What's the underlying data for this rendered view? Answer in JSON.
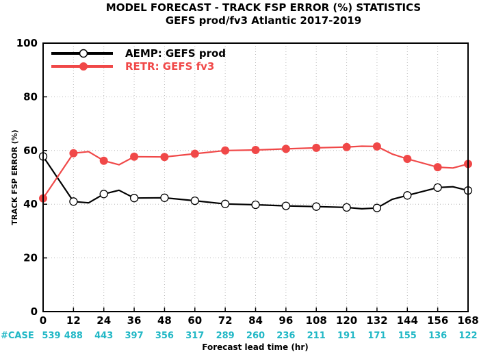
{
  "chart_data": {
    "type": "line",
    "title": "MODEL FORECAST - TRACK FSP ERROR (%) STATISTICS",
    "subtitle": "GEFS prod/fv3 Atlantic 2017-2019",
    "xlabel": "Forecast lead time (hr)",
    "ylabel": "TRACK FSP ERROR (%)",
    "xlim": [
      0,
      168
    ],
    "ylim": [
      0,
      100
    ],
    "x_ticks": [
      0,
      12,
      24,
      36,
      48,
      60,
      72,
      84,
      96,
      108,
      120,
      132,
      144,
      156,
      168
    ],
    "y_ticks": [
      0,
      20,
      40,
      60,
      80,
      100
    ],
    "grid": true,
    "legend_position": "top-left",
    "x": [
      0,
      12,
      18,
      24,
      30,
      36,
      48,
      60,
      72,
      84,
      96,
      108,
      120,
      126,
      132,
      138,
      144,
      156,
      162,
      168
    ],
    "series": [
      {
        "name": "AEMP: GEFS prod",
        "color": "#000000",
        "marker": "open-circle",
        "values": [
          57.8,
          41.0,
          40.5,
          43.8,
          45.2,
          42.3,
          42.4,
          41.3,
          40.1,
          39.8,
          39.4,
          39.1,
          38.8,
          38.3,
          38.6,
          41.8,
          43.3,
          46.2,
          46.5,
          45.1
        ],
        "marked_x": [
          0,
          12,
          24,
          36,
          48,
          60,
          72,
          84,
          96,
          108,
          120,
          132,
          144,
          156,
          168
        ]
      },
      {
        "name": "RETR: GEFS fv3",
        "color": "#f04848",
        "marker": "filled-circle",
        "values": [
          42.2,
          59.0,
          59.6,
          56.2,
          54.7,
          57.7,
          57.6,
          58.8,
          60.0,
          60.2,
          60.6,
          61.0,
          61.3,
          61.6,
          61.5,
          58.7,
          56.9,
          53.8,
          53.5,
          55.0
        ],
        "marked_x": [
          0,
          12,
          24,
          36,
          48,
          60,
          72,
          84,
          96,
          108,
          120,
          132,
          144,
          156,
          168
        ]
      }
    ],
    "case_label": "#CASE",
    "case_counts": [
      "539",
      "488",
      "443",
      "397",
      "356",
      "317",
      "289",
      "260",
      "236",
      "211",
      "191",
      "171",
      "155",
      "136",
      "122"
    ],
    "case_color": "#22b8c6"
  }
}
